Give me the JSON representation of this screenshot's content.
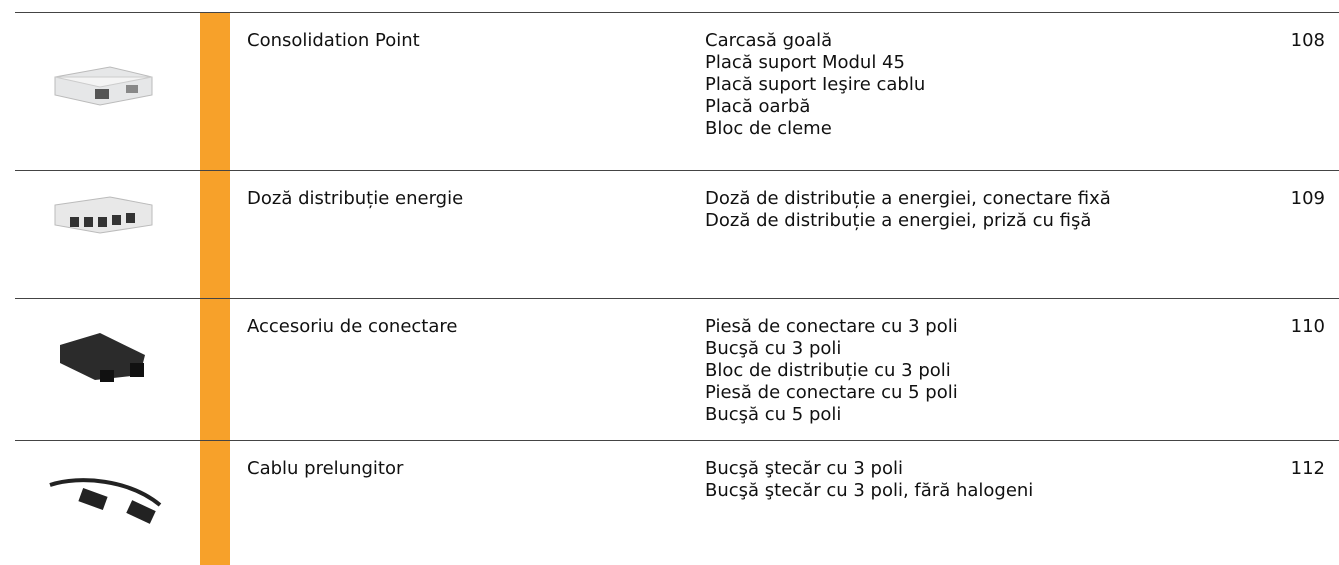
{
  "table": {
    "rows": [
      {
        "name": "Consolidation Point",
        "items": [
          "Carcasă goală",
          "Placă suport Modul 45",
          "Placă suport Ieşire cablu",
          "Placă oarbă",
          "Bloc de cleme"
        ],
        "page": "108"
      },
      {
        "name": "Doză distribuție energie",
        "items": [
          "Doză de distribuție a energiei, conectare fixă",
          "Doză de distribuție a energiei, priză cu fişă"
        ],
        "page": "109"
      },
      {
        "name": "Accesoriu de conectare",
        "items": [
          "Piesă de conectare cu 3 poli",
          "Bucşă cu 3 poli",
          "Bloc de distribuție cu 3 poli",
          "Piesă de conectare cu 5 poli",
          "Bucşă cu 5 poli"
        ],
        "page": "110"
      },
      {
        "name": "Cablu prelungitor",
        "items": [
          "Bucşă ştecăr cu 3 poli",
          "Bucşă ştecăr cu 3 poli, fără halogeni"
        ],
        "page": "112"
      }
    ]
  }
}
